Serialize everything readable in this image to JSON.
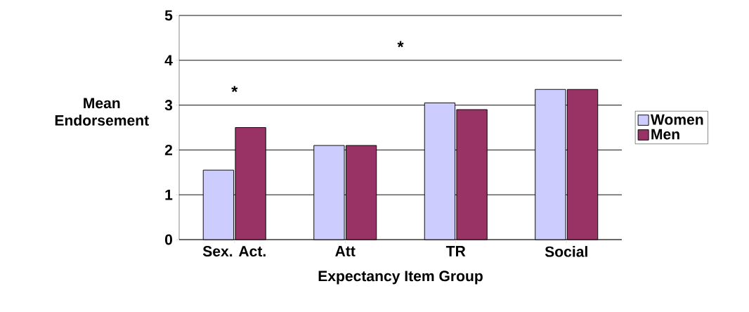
{
  "chart_data": {
    "type": "bar",
    "xlabel": "Expectancy Item Group",
    "ylabel": "Mean Endorsement",
    "categories": [
      "Sex. Act.",
      "Att",
      "TR",
      "Social"
    ],
    "series": [
      {
        "name": "Women",
        "color": "#ccccff",
        "values": [
          1.55,
          2.1,
          3.05,
          3.35
        ]
      },
      {
        "name": "Men",
        "color": "#993366",
        "values": [
          2.5,
          2.1,
          2.9,
          3.35
        ]
      }
    ],
    "ylim": [
      0,
      5
    ],
    "yticks": [
      0,
      1,
      2,
      3,
      4,
      5
    ],
    "grid": "y",
    "legend": "right",
    "annotations": [
      "*",
      "*"
    ]
  }
}
